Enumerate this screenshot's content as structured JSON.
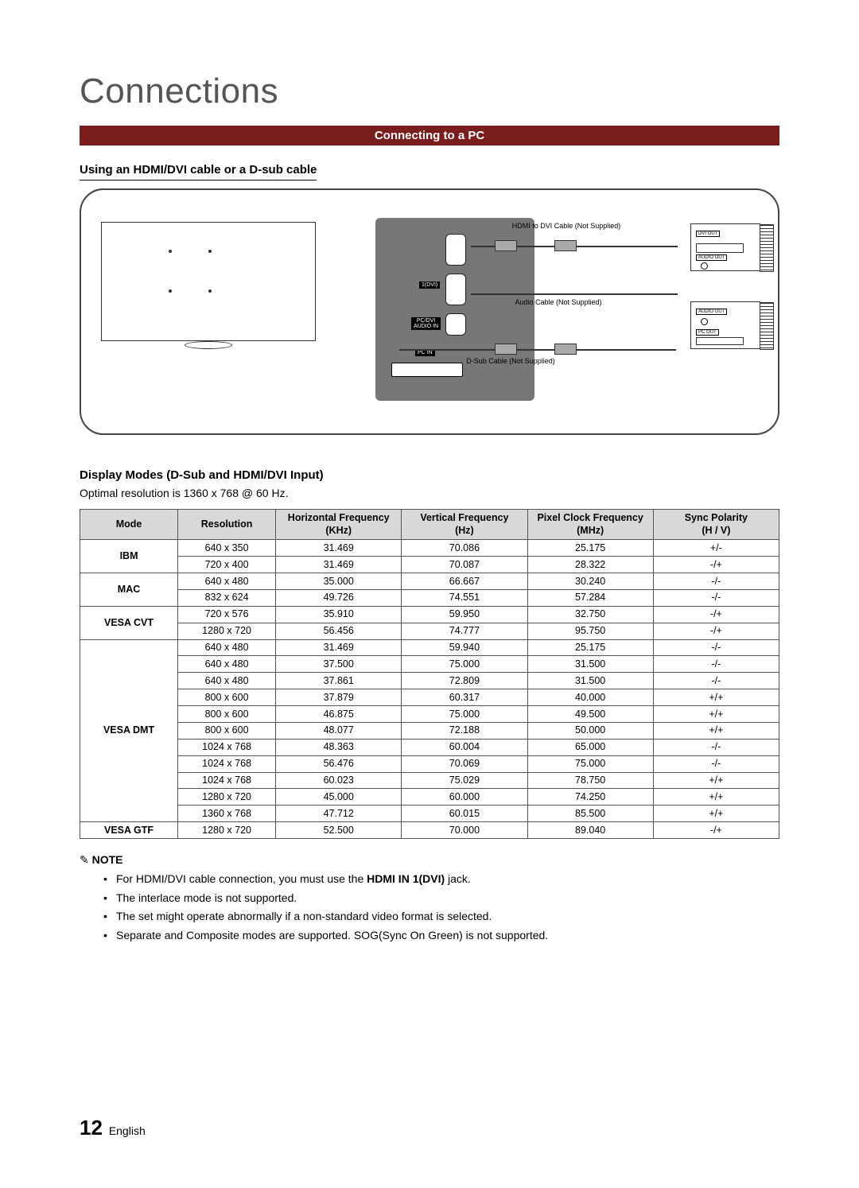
{
  "page": {
    "title": "Connections",
    "section_bar": "Connecting to a PC",
    "subheading1": "Using an HDMI/DVI cable or a D-sub cable",
    "subheading2": "Display Modes (D-Sub and HDMI/DVI Input)",
    "optimal_text": "Optimal resolution is 1360 x 768 @ 60 Hz.",
    "page_number": "12",
    "page_lang": "English"
  },
  "diagram": {
    "cable_hdmi": "HDMI to DVI Cable (Not Supplied)",
    "cable_audio": "Audio Cable (Not Supplied)",
    "cable_dsub": "D-Sub Cable (Not Supplied)",
    "port_labels": {
      "hdmi1": "1(DVI)",
      "pcdvi": "PC/DVI\nAUDIO IN",
      "pcin": "PC IN"
    },
    "pc_labels": {
      "dvi": "DVI OUT",
      "audio": "AUDIO OUT",
      "pc": "PC OUT"
    },
    "colors": {
      "box_border": "#444444",
      "tv_back": "#777777",
      "section_bar": "#7a1d1d"
    }
  },
  "table": {
    "columns": [
      "Mode",
      "Resolution",
      "Horizontal Frequency\n(KHz)",
      "Vertical Frequency\n(Hz)",
      "Pixel Clock Frequency\n(MHz)",
      "Sync Polarity\n(H / V)"
    ],
    "col_widths": [
      "14%",
      "14%",
      "18%",
      "18%",
      "18%",
      "18%"
    ],
    "header_bg": "#d9d9d9",
    "border_color": "#555555",
    "groups": [
      {
        "mode": "IBM",
        "rows": [
          [
            "640 x 350",
            "31.469",
            "70.086",
            "25.175",
            "+/-"
          ],
          [
            "720 x 400",
            "31.469",
            "70.087",
            "28.322",
            "-/+"
          ]
        ]
      },
      {
        "mode": "MAC",
        "rows": [
          [
            "640 x 480",
            "35.000",
            "66.667",
            "30.240",
            "-/-"
          ],
          [
            "832 x 624",
            "49.726",
            "74.551",
            "57.284",
            "-/-"
          ]
        ]
      },
      {
        "mode": "VESA CVT",
        "rows": [
          [
            "720 x 576",
            "35.910",
            "59.950",
            "32.750",
            "-/+"
          ],
          [
            "1280 x 720",
            "56.456",
            "74.777",
            "95.750",
            "-/+"
          ]
        ]
      },
      {
        "mode": "VESA DMT",
        "rows": [
          [
            "640 x 480",
            "31.469",
            "59.940",
            "25.175",
            "-/-"
          ],
          [
            "640 x 480",
            "37.500",
            "75.000",
            "31.500",
            "-/-"
          ],
          [
            "640 x 480",
            "37.861",
            "72.809",
            "31.500",
            "-/-"
          ],
          [
            "800 x 600",
            "37.879",
            "60.317",
            "40.000",
            "+/+"
          ],
          [
            "800 x 600",
            "46.875",
            "75.000",
            "49.500",
            "+/+"
          ],
          [
            "800 x 600",
            "48.077",
            "72.188",
            "50.000",
            "+/+"
          ],
          [
            "1024 x 768",
            "48.363",
            "60.004",
            "65.000",
            "-/-"
          ],
          [
            "1024 x 768",
            "56.476",
            "70.069",
            "75.000",
            "-/-"
          ],
          [
            "1024 x 768",
            "60.023",
            "75.029",
            "78.750",
            "+/+"
          ],
          [
            "1280 x 720",
            "45.000",
            "60.000",
            "74.250",
            "+/+"
          ],
          [
            "1360 x 768",
            "47.712",
            "60.015",
            "85.500",
            "+/+"
          ]
        ]
      },
      {
        "mode": "VESA GTF",
        "rows": [
          [
            "1280 x 720",
            "52.500",
            "70.000",
            "89.040",
            "-/+"
          ]
        ]
      }
    ]
  },
  "notes": {
    "label": "NOTE",
    "items": [
      {
        "pre": "For HDMI/DVI cable connection, you must use the ",
        "bold": "HDMI IN 1(DVI)",
        "post": " jack."
      },
      {
        "pre": "The interlace mode is not supported.",
        "bold": "",
        "post": ""
      },
      {
        "pre": "The set might operate abnormally if a non-standard video format is selected.",
        "bold": "",
        "post": ""
      },
      {
        "pre": "Separate and Composite modes are supported. SOG(Sync On Green) is not supported.",
        "bold": "",
        "post": ""
      }
    ]
  }
}
